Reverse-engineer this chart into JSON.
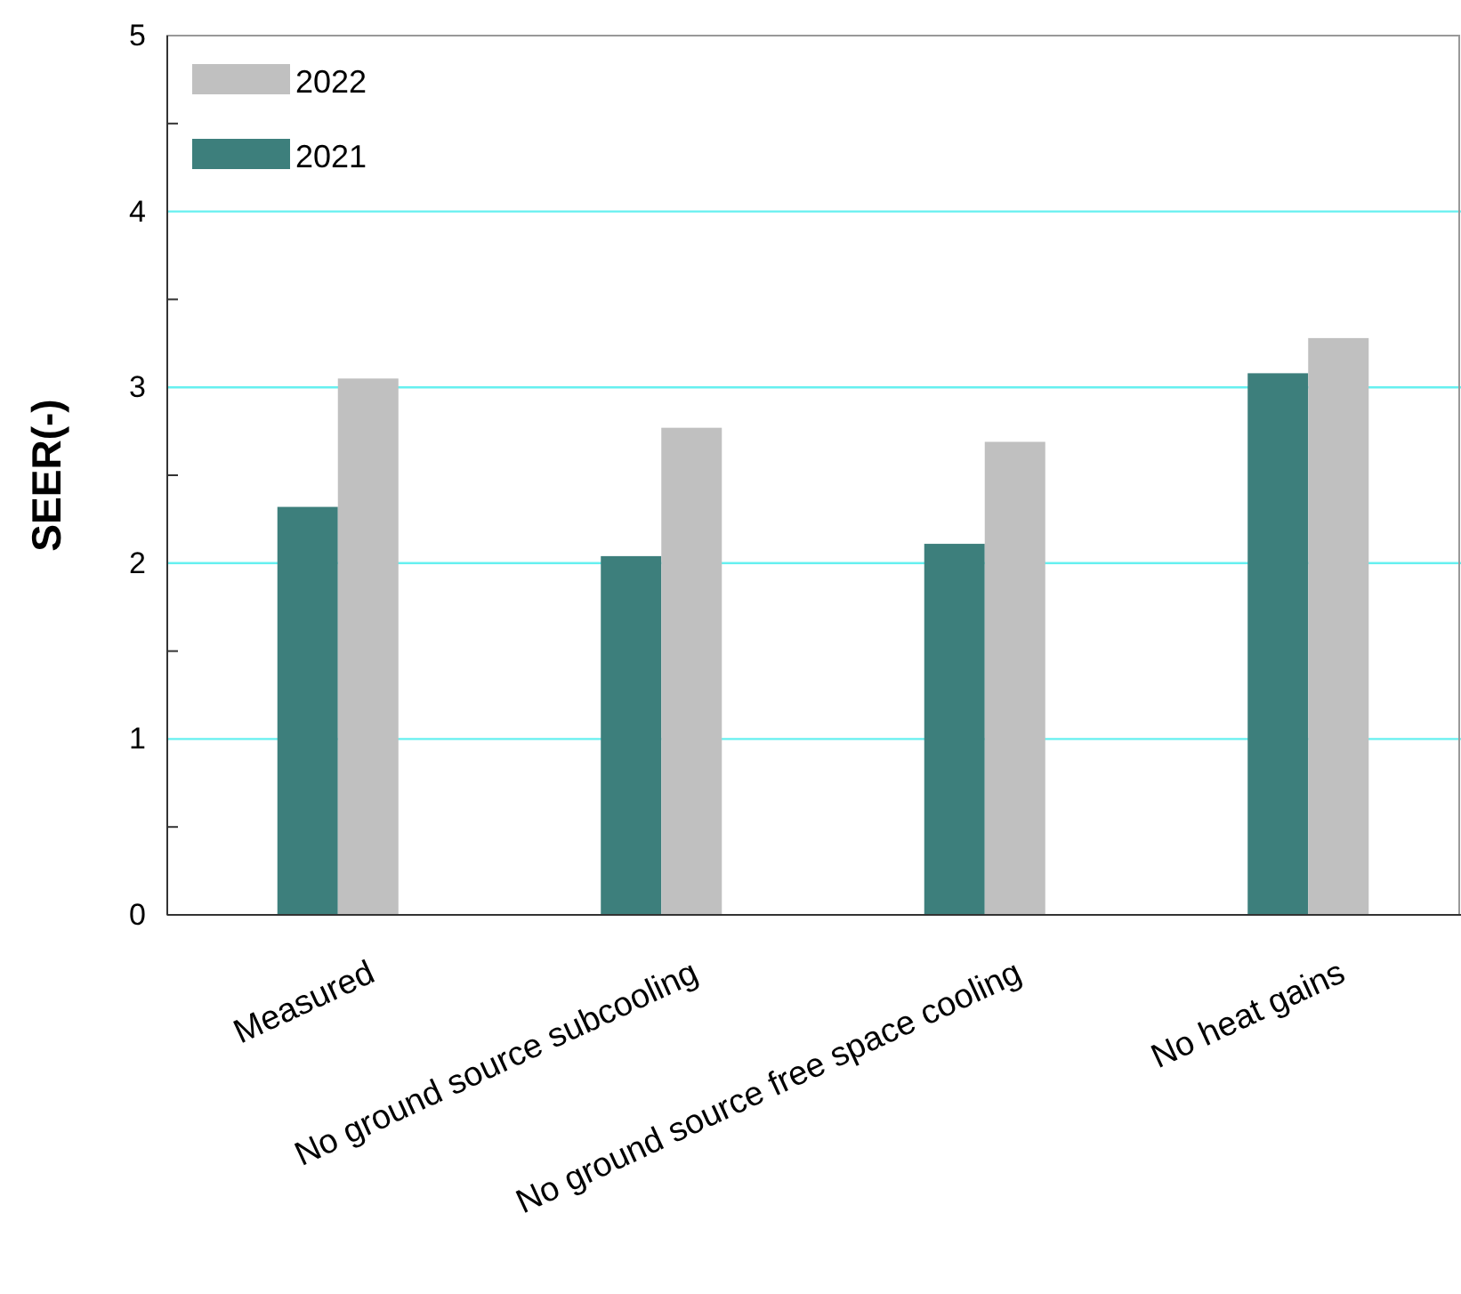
{
  "chart_data": {
    "type": "bar",
    "ylabel": "SEER(-)",
    "categories": [
      "Measured",
      "No ground source subcooling",
      "No ground source free space cooling",
      "No heat gains"
    ],
    "series": [
      {
        "name": "2021",
        "color": "#3d7f7c",
        "values": [
          2.32,
          2.04,
          2.11,
          3.08
        ]
      },
      {
        "name": "2022",
        "color": "#c0c0c0",
        "values": [
          3.05,
          2.77,
          2.69,
          3.28
        ]
      }
    ],
    "ylim": [
      0,
      5
    ],
    "yticks": [
      0,
      {
        "value": 0.5,
        "label": null
      },
      1,
      {
        "value": 1.5,
        "label": null
      },
      2,
      {
        "value": 2.5,
        "label": null
      },
      3,
      {
        "value": 3.5,
        "label": null
      },
      4,
      {
        "value": 4.5,
        "label": null
      },
      5
    ],
    "grid": "y",
    "legend": "top left"
  }
}
